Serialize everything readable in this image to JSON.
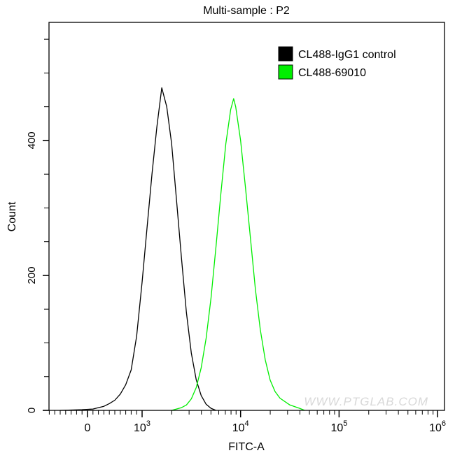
{
  "chart_data": {
    "type": "line",
    "title": "Multi-sample : P2",
    "xlabel": "FITC-A",
    "ylabel": "Count",
    "x_scale": "biexponential (log above 10^3)",
    "xlim": [
      -700,
      1000000
    ],
    "ylim": [
      0,
      575
    ],
    "x_tick_labels": [
      {
        "value": 0,
        "base": "0",
        "exp": ""
      },
      {
        "value": 1000,
        "base": "10",
        "exp": "3"
      },
      {
        "value": 10000,
        "base": "10",
        "exp": "4"
      },
      {
        "value": 100000,
        "base": "10",
        "exp": "5"
      },
      {
        "value": 1000000,
        "base": "10",
        "exp": "6"
      }
    ],
    "y_ticks": [
      0,
      200,
      400
    ],
    "y_minor_step": 50,
    "grid": false,
    "legend_position": "top-right",
    "watermark": "WWW.PTGLAB.COM",
    "series": [
      {
        "name": "CL488-IgG1 control",
        "color": "#000000",
        "points": [
          [
            -500,
            0
          ],
          [
            -100,
            1
          ],
          [
            100,
            2
          ],
          [
            200,
            4
          ],
          [
            300,
            6
          ],
          [
            400,
            10
          ],
          [
            500,
            15
          ],
          [
            600,
            24
          ],
          [
            700,
            38
          ],
          [
            800,
            60
          ],
          [
            900,
            110
          ],
          [
            1000,
            190
          ],
          [
            1122,
            270
          ],
          [
            1259,
            350
          ],
          [
            1413,
            420
          ],
          [
            1585,
            478
          ],
          [
            1778,
            450
          ],
          [
            1995,
            395
          ],
          [
            2239,
            310
          ],
          [
            2512,
            225
          ],
          [
            2818,
            145
          ],
          [
            3162,
            85
          ],
          [
            3548,
            45
          ],
          [
            3981,
            22
          ],
          [
            4467,
            9
          ],
          [
            5012,
            3
          ],
          [
            5623,
            0
          ]
        ]
      },
      {
        "name": "CL488-69010",
        "color": "#00ee00",
        "points": [
          [
            1995,
            0
          ],
          [
            2512,
            4
          ],
          [
            2818,
            8
          ],
          [
            3162,
            17
          ],
          [
            3548,
            34
          ],
          [
            3981,
            63
          ],
          [
            4467,
            107
          ],
          [
            5012,
            167
          ],
          [
            5623,
            242
          ],
          [
            6310,
            322
          ],
          [
            7079,
            395
          ],
          [
            7943,
            446
          ],
          [
            8511,
            462
          ],
          [
            8913,
            450
          ],
          [
            10000,
            400
          ],
          [
            11220,
            330
          ],
          [
            12589,
            255
          ],
          [
            14125,
            180
          ],
          [
            15849,
            120
          ],
          [
            17783,
            75
          ],
          [
            19953,
            45
          ],
          [
            22387,
            28
          ],
          [
            25119,
            18
          ],
          [
            31623,
            8
          ],
          [
            39811,
            3
          ],
          [
            44668,
            0
          ]
        ]
      }
    ]
  }
}
